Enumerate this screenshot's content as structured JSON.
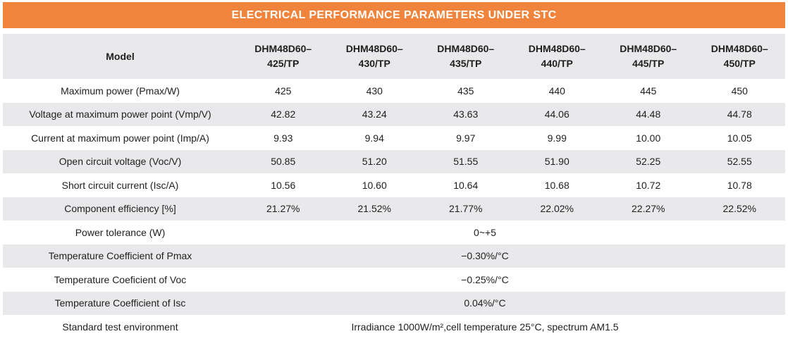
{
  "title": "ELECTRICAL PERFORMANCE PARAMETERS UNDER STC",
  "colors": {
    "accent_orange": "#F1843C",
    "row_gray": "#E9E9EB",
    "title_text": "#FFFFFF",
    "body_text": "#1F1F1F"
  },
  "table": {
    "model_header": "Model",
    "models": [
      {
        "line1": "DHM48D60–",
        "line2": "425/TP"
      },
      {
        "line1": "DHM48D60–",
        "line2": "430/TP"
      },
      {
        "line1": "DHM48D60–",
        "line2": "435/TP"
      },
      {
        "line1": "DHM48D60–",
        "line2": "440/TP"
      },
      {
        "line1": "DHM48D60–",
        "line2": "445/TP"
      },
      {
        "line1": "DHM48D60–",
        "line2": "450/TP"
      }
    ],
    "rows": [
      {
        "label": "Maximum power (Pmax/W)",
        "values": [
          "425",
          "430",
          "435",
          "440",
          "445",
          "450"
        ]
      },
      {
        "label": "Voltage at maximum power point (Vmp/V)",
        "values": [
          "42.82",
          "43.24",
          "43.63",
          "44.06",
          "44.48",
          "44.78"
        ]
      },
      {
        "label": "Current at maximum power point (Imp/A)",
        "values": [
          "9.93",
          "9.94",
          "9.97",
          "9.99",
          "10.00",
          "10.05"
        ]
      },
      {
        "label": "Open circuit voltage (Voc/V)",
        "values": [
          "50.85",
          "51.20",
          "51.55",
          "51.90",
          "52.25",
          "52.55"
        ]
      },
      {
        "label": "Short circuit current (Isc/A)",
        "values": [
          "10.56",
          "10.60",
          "10.64",
          "10.68",
          "10.72",
          "10.78"
        ]
      },
      {
        "label": "Component efficiency [%]",
        "values": [
          "21.27%",
          "21.52%",
          "21.77%",
          "22.02%",
          "22.27%",
          "22.52%"
        ]
      }
    ],
    "merged_rows": [
      {
        "label": "Power tolerance (W)",
        "value": "0~+5"
      },
      {
        "label": "Temperature Coefficient of Pmax",
        "value": "−0.30%/°C"
      },
      {
        "label": "Temperature Coeficient of Voc",
        "value": "−0.25%/°C"
      },
      {
        "label": "Temperature Coefficient of Isc",
        "value": "0.04%/°C"
      },
      {
        "label": "Standard test environment",
        "value": "Irradiance 1000W/m²,cell temperature 25°C, spectrum AM1.5"
      }
    ]
  }
}
